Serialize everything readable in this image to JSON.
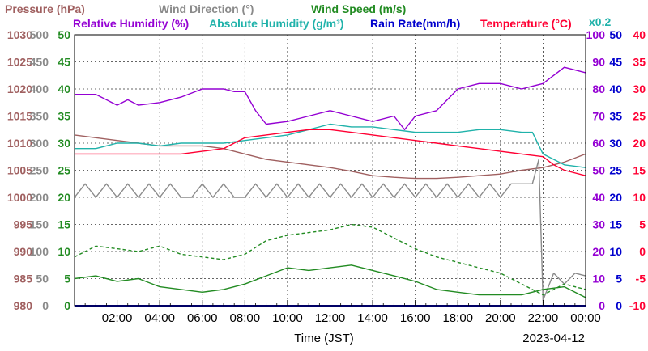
{
  "chart_data": {
    "type": "line",
    "date": "2023-04-12",
    "xlabel": "Time (JST)",
    "x_ticks": [
      "02:00",
      "04:00",
      "06:00",
      "08:00",
      "10:00",
      "12:00",
      "14:00",
      "16:00",
      "18:00",
      "20:00",
      "22:00",
      "00:00"
    ],
    "x_tick_hours": [
      2,
      4,
      6,
      8,
      10,
      12,
      14,
      16,
      18,
      20,
      22,
      24
    ],
    "xlim_hours": [
      0,
      24
    ],
    "grid": true,
    "legend": {
      "row1": [
        {
          "key": "pressure",
          "text": "Pressure (hPa)"
        },
        {
          "key": "wind_dir",
          "text": "Wind Direction (°)"
        },
        {
          "key": "wind_speed",
          "text": "Wind Speed (m/s)"
        }
      ],
      "row2": [
        {
          "key": "rel_hum",
          "text": "Relative Humidity (%)"
        },
        {
          "key": "abs_hum",
          "text": "Absolute Humidity (g/m³)"
        },
        {
          "key": "rain",
          "text": "Rain Rate(mm/h)"
        },
        {
          "key": "temp",
          "text": "Temperature (°C)"
        }
      ],
      "multiplier": "x0.2"
    },
    "colors": {
      "pressure": "#a06060",
      "wind_dir": "#8a8a8a",
      "wind_speed": "#228b22",
      "rel_hum": "#9400d3",
      "abs_hum": "#20b2aa",
      "rain": "#0000cd",
      "temp": "#ff0033",
      "grid": "#333333"
    },
    "axes": {
      "pressure": {
        "ticks": [
          "1030",
          "1025",
          "1020",
          "1015",
          "1010",
          "1005",
          "1000",
          "995",
          "990",
          "985",
          "980"
        ],
        "range": [
          980,
          1030
        ]
      },
      "wind_dir": {
        "ticks": [
          "500",
          "450",
          "400",
          "350",
          "300",
          "250",
          "200",
          "150",
          "100",
          "50",
          "0"
        ],
        "range": [
          0,
          500
        ]
      },
      "wind_speed": {
        "ticks": [
          "50",
          "45",
          "40",
          "35",
          "30",
          "25",
          "20",
          "15",
          "10",
          "5",
          "0"
        ],
        "range": [
          0,
          50
        ]
      },
      "rel_hum": {
        "ticks": [
          "100",
          "90",
          "80",
          "70",
          "60",
          "50",
          "40",
          "30",
          "20",
          "10",
          "0"
        ],
        "range": [
          0,
          100
        ]
      },
      "rain": {
        "ticks": [
          "50",
          "45",
          "40",
          "35",
          "30",
          "25",
          "20",
          "15",
          "10",
          "5",
          "0"
        ],
        "range": [
          0,
          50
        ]
      },
      "temp": {
        "ticks": [
          "40",
          "35",
          "30",
          "25",
          "20",
          "15",
          "10",
          "5",
          "0",
          "-5",
          "-10"
        ],
        "range": [
          -10,
          40
        ]
      }
    },
    "series": [
      {
        "key": "pressure",
        "name": "Pressure (hPa)",
        "axis": "pressure",
        "style": "solid",
        "x": [
          0,
          1,
          2,
          3,
          4,
          5,
          6,
          7,
          8,
          9,
          10,
          11,
          12,
          13,
          14,
          15,
          16,
          17,
          18,
          19,
          20,
          21,
          22,
          23,
          24
        ],
        "y": [
          1011.5,
          1011,
          1010.5,
          1010,
          1009.5,
          1009.5,
          1009.5,
          1009,
          1008,
          1007,
          1006.5,
          1006,
          1005.5,
          1004.8,
          1004,
          1003.7,
          1003.5,
          1003.5,
          1003.7,
          1004,
          1004.3,
          1005,
          1005.5,
          1006.5,
          1008
        ]
      },
      {
        "key": "wind_dir",
        "name": "Wind Direction (°)",
        "axis": "wind_dir",
        "style": "solid",
        "x": [
          0,
          0.5,
          1,
          1.5,
          2,
          2.5,
          3,
          3.5,
          4,
          4.5,
          5,
          5.5,
          6,
          6.5,
          7,
          7.5,
          8,
          8.5,
          9,
          9.5,
          10,
          10.5,
          11,
          11.5,
          12,
          12.5,
          13,
          13.5,
          14,
          14.5,
          15,
          15.5,
          16,
          16.5,
          17,
          17.5,
          18,
          18.5,
          19,
          19.5,
          20,
          20.5,
          21,
          21.5,
          21.8,
          22,
          22.5,
          23,
          23.5,
          24
        ],
        "y": [
          200,
          225,
          200,
          225,
          200,
          225,
          200,
          225,
          200,
          225,
          200,
          200,
          225,
          200,
          225,
          200,
          200,
          225,
          200,
          225,
          200,
          225,
          200,
          225,
          200,
          225,
          200,
          225,
          200,
          225,
          200,
          225,
          200,
          225,
          200,
          225,
          200,
          225,
          200,
          225,
          200,
          225,
          225,
          225,
          270,
          10,
          60,
          40,
          60,
          55
        ]
      },
      {
        "key": "wind_speed_avg",
        "name": "Wind Speed (m/s)",
        "axis": "wind_speed",
        "style": "solid",
        "x": [
          0,
          1,
          2,
          3,
          4,
          5,
          6,
          7,
          8,
          9,
          10,
          11,
          12,
          13,
          14,
          15,
          16,
          17,
          18,
          19,
          20,
          21,
          22,
          23,
          24
        ],
        "y": [
          5,
          5.5,
          4.5,
          5,
          3.5,
          3,
          2.5,
          3,
          4,
          5.5,
          7,
          6.5,
          7,
          7.5,
          6.5,
          5.5,
          4.5,
          3,
          2.5,
          2,
          2,
          2,
          3,
          3.5,
          1.5
        ]
      },
      {
        "key": "wind_speed_gust",
        "name": "Wind Speed (m/s)",
        "axis": "wind_speed",
        "style": "dashed",
        "x": [
          0,
          1,
          2,
          3,
          4,
          5,
          6,
          7,
          8,
          9,
          10,
          11,
          12,
          13,
          14,
          15,
          16,
          17,
          18,
          19,
          20,
          21,
          22,
          23,
          24
        ],
        "y": [
          9,
          11,
          10.5,
          10,
          11,
          9.5,
          9,
          8.5,
          9.5,
          12,
          13,
          13.5,
          14,
          15,
          14.5,
          12.5,
          10.5,
          9,
          8,
          7,
          6,
          4,
          2,
          4,
          3
        ]
      },
      {
        "key": "rel_hum",
        "name": "Relative Humidity (%)",
        "axis": "rel_hum",
        "style": "solid",
        "x": [
          0,
          1,
          2,
          2.5,
          3,
          4,
          5,
          6,
          7,
          7.5,
          8,
          8.5,
          9,
          10,
          11,
          12,
          13,
          14,
          15,
          15.5,
          16,
          17,
          18,
          19,
          20,
          21,
          21.5,
          22,
          23,
          24
        ],
        "y": [
          78,
          78,
          74,
          76,
          74,
          75,
          77,
          80,
          80,
          79,
          79,
          72,
          67,
          68,
          70,
          72,
          70,
          68,
          70,
          65,
          70,
          72,
          80,
          82,
          82,
          80,
          81,
          82,
          88,
          86
        ]
      },
      {
        "key": "abs_hum",
        "name": "Absolute Humidity (g/m³)",
        "axis": "rel_hum",
        "style": "solid",
        "x": [
          0,
          1,
          2,
          3,
          4,
          5,
          6,
          7,
          8,
          9,
          10,
          11,
          12,
          13,
          14,
          15,
          16,
          17,
          18,
          19,
          20,
          21,
          21.5,
          22,
          23,
          24
        ],
        "y": [
          58,
          58,
          60,
          60,
          59,
          60,
          60,
          60,
          61,
          62,
          63,
          65,
          67,
          66,
          66,
          65,
          64,
          64,
          64,
          65,
          65,
          64,
          64,
          56,
          52,
          51
        ]
      },
      {
        "key": "temp",
        "name": "Temperature (°C)",
        "axis": "temp",
        "style": "solid",
        "x": [
          0,
          1,
          2,
          3,
          4,
          5,
          6,
          7,
          8,
          9,
          10,
          11,
          12,
          13,
          14,
          15,
          16,
          17,
          18,
          19,
          20,
          21,
          22,
          22.5,
          23,
          24
        ],
        "y": [
          18,
          18,
          18,
          18,
          18,
          18,
          18.5,
          19,
          21,
          21.5,
          22,
          22.5,
          22.5,
          22,
          21.5,
          21,
          20.5,
          20,
          19.5,
          19,
          18.5,
          18,
          17.5,
          16,
          15,
          14
        ]
      },
      {
        "key": "rain",
        "name": "Rain Rate(mm/h)",
        "axis": "rain",
        "style": "solid",
        "x": [
          0,
          24
        ],
        "y": [
          0,
          0
        ]
      }
    ]
  }
}
